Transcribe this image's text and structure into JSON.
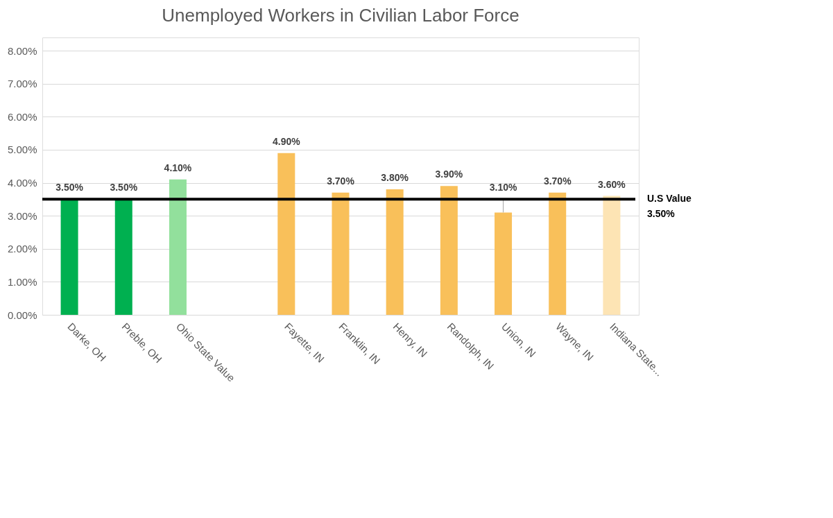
{
  "chart_data": {
    "type": "bar",
    "title": "Unemployed Workers in Civilian Labor Force",
    "categories": [
      "Darke, OH",
      "Preble, OH",
      "Ohio State Value",
      null,
      "Fayette, IN",
      "Franklin, IN",
      "Henry, IN",
      "Randolph, IN",
      "Union, IN",
      "Wayne, IN",
      "Indiana State..."
    ],
    "values": [
      3.5,
      3.5,
      4.1,
      null,
      4.9,
      3.7,
      3.8,
      3.9,
      3.1,
      3.7,
      3.6
    ],
    "colors": [
      "#00b050",
      "#00b050",
      "#92e09c",
      "#f9c05a",
      "#f9c05a",
      "#f9c05a",
      "#f9c05a",
      "#f9c05a",
      "#f9c05a",
      "#f9c05a",
      "#fde4b4"
    ],
    "value_labels": [
      "3.50%",
      "3.50%",
      "4.10%",
      null,
      "4.90%",
      "3.70%",
      "3.80%",
      "3.90%",
      "3.10%",
      "3.70%",
      "3.60%"
    ],
    "ylim": [
      0,
      8.4
    ],
    "yticks": [
      {
        "value": 0,
        "label": "0.00%"
      },
      {
        "value": 1,
        "label": "1.00%"
      },
      {
        "value": 2,
        "label": "2.00%"
      },
      {
        "value": 3,
        "label": "3.00%"
      },
      {
        "value": 4,
        "label": "4.00%"
      },
      {
        "value": 5,
        "label": "5.00%"
      },
      {
        "value": 6,
        "label": "6.00%"
      },
      {
        "value": 7,
        "label": "7.00%"
      },
      {
        "value": 8,
        "label": "8.00%"
      }
    ],
    "grid": "y",
    "ref_lines": [
      {
        "axis": "y",
        "value": 3.5,
        "label": "U.S Value\n3.50%",
        "color": "#000000"
      }
    ]
  }
}
